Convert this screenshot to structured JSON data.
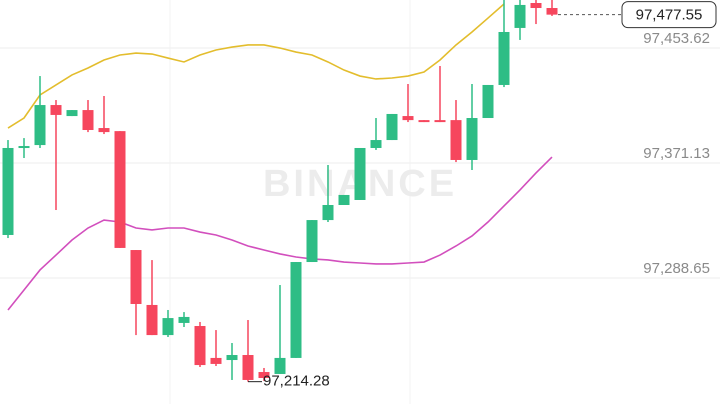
{
  "chart_data": {
    "type": "candlestick",
    "watermark": "BINANCE",
    "up_color": "#2ebd85",
    "down_color": "#f6465d",
    "open": [
      97319.5,
      97381.9,
      97384.0,
      97412.7,
      97404.8,
      97409.1,
      97396.2,
      97394.0,
      97308.7,
      97269.3,
      97247.7,
      97256.4,
      97254.2,
      97231.3,
      97229.8,
      97233.4,
      97221.2,
      97219.8,
      97231.3,
      97300.1,
      97330.2,
      97341.0,
      97344.6,
      97381.9,
      97387.6,
      97404.8,
      97401.9,
      97401.9,
      97401.9,
      97373.3,
      97403.4,
      97427.1,
      97468.0,
      97485.9,
      97482.3
    ],
    "high": [
      97387.6,
      97389.0,
      97433.5,
      97416.3,
      97409.1,
      97416.3,
      97419.2,
      97394.0,
      97308.7,
      97301.5,
      97265.7,
      97264.2,
      97257.1,
      97251.3,
      97242.0,
      97258.5,
      97224.1,
      97283.6,
      97300.1,
      97330.2,
      97369.7,
      97348.2,
      97381.9,
      97403.4,
      97406.3,
      97427.8,
      97401.9,
      97440.7,
      97416.3,
      97427.8,
      97427.1,
      97488.05,
      97488.05,
      97488.05,
      97488.05
    ],
    "low": [
      97317.3,
      97374.7,
      97381.9,
      97337.4,
      97404.8,
      97393.3,
      97391.9,
      97310.2,
      97247.7,
      97247.7,
      97246.3,
      97253.5,
      97224.8,
      97225.5,
      97215.5,
      97214.28,
      97214.8,
      97219.8,
      97231.3,
      97300.1,
      97328.8,
      97341.0,
      97344.6,
      97380.5,
      97387.6,
      97400.5,
      97400.5,
      97400.5,
      97371.8,
      97366.1,
      97403.4,
      97425.6,
      97459.4,
      97470.8,
      97476.6
    ],
    "close": [
      97381.9,
      97383.3,
      97412.7,
      97405.6,
      97409.1,
      97394.8,
      97393.3,
      97310.2,
      97270.0,
      97247.7,
      97259.9,
      97260.7,
      97226.2,
      97227.0,
      97233.4,
      97215.5,
      97216.9,
      97231.3,
      97300.1,
      97330.2,
      97341.0,
      97348.2,
      97381.9,
      97387.6,
      97406.3,
      97401.9,
      97400.5,
      97400.5,
      97373.3,
      97403.4,
      97427.1,
      97465.1,
      97484.5,
      97482.3,
      97477.55
    ],
    "series": [
      {
        "color": "#e3bd2d",
        "values": [
          97396.2,
          97403.4,
          97419.9,
          97427.1,
          97434.3,
          97439.3,
          97445.0,
          97448.6,
          97450.0,
          97449.3,
          97446.4,
          97443.6,
          97448.6,
          97452.2,
          97454.3,
          97455.8,
          97455.8,
          97453.6,
          97450.7,
          97448.6,
          97443.6,
          97437.8,
          97433.5,
          97431.4,
          97432.1,
          97433.5,
          97436.4,
          97445.0,
          97455.8,
          97465.1,
          97475.1,
          97485.2,
          null,
          null,
          null
        ]
      },
      {
        "color": "#d24fbd",
        "values": [
          97265.7,
          97280.0,
          97294.4,
          97305.1,
          97315.9,
          97324.5,
          97330.2,
          97328.8,
          97324.5,
          97323.1,
          97324.5,
          97324.5,
          97321.6,
          97319.5,
          97315.9,
          97311.6,
          97308.7,
          97305.9,
          97303.7,
          97302.3,
          97301.6,
          97300.1,
          97299.4,
          97298.7,
          97298.7,
          97299.4,
          97300.1,
          97305.1,
          97311.6,
          97318.8,
          97328.8,
          97340.3,
          97351.8,
          97364.0,
          97375.4
        ]
      }
    ],
    "ylim": [
      97198.26,
      97488.05
    ],
    "yticks": [
      {
        "value": 97453.62,
        "label": "97,453.62"
      },
      {
        "value": 97371.13,
        "label": "97,371.13"
      },
      {
        "value": 97288.65,
        "label": "97,288.65"
      }
    ],
    "last_price": {
      "value": 97477.55,
      "label": "97,477.55"
    },
    "low_marker": {
      "value": 97214.28,
      "label": "97,214.28"
    },
    "grid": true
  }
}
